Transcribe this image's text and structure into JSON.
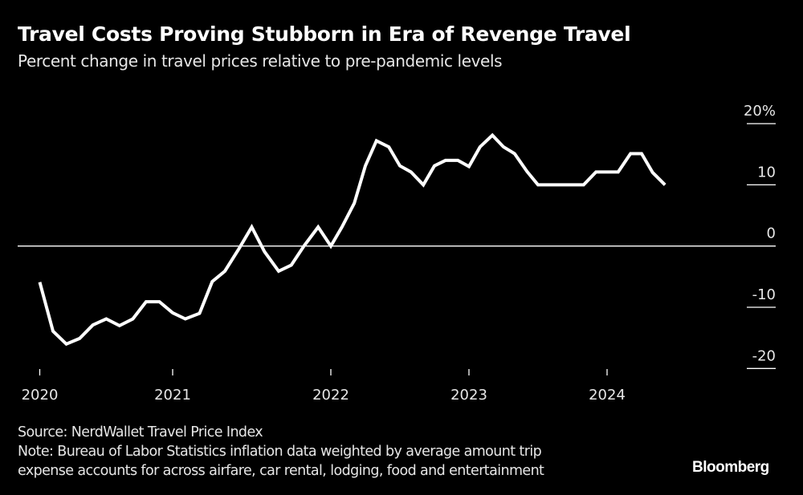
{
  "title": "Travel Costs Proving Stubborn in Era of Revenge Travel",
  "subtitle": "Percent change in travel prices relative to pre-pandemic levels",
  "footer": {
    "source": "Source: NerdWallet Travel Price Index",
    "note_line1": "Note: Bureau of Labor Statistics inflation data weighted by average amount trip",
    "note_line2": "expense accounts for across airfare, car rental, lodging, food and entertainment",
    "logo": "Bloomberg"
  },
  "chart_data": {
    "type": "line",
    "title": "Travel Costs Proving Stubborn in Era of Revenge Travel",
    "subtitle": "Percent change in travel prices relative to pre-pandemic levels",
    "ylim": [
      -20,
      20
    ],
    "y_ticks": [
      {
        "value": 20,
        "label": "20%"
      },
      {
        "value": 10,
        "label": "10"
      },
      {
        "value": 0,
        "label": "0"
      },
      {
        "value": -10,
        "label": "-10"
      },
      {
        "value": -20,
        "label": "-20"
      }
    ],
    "x_ticks": [
      {
        "value": 2020,
        "label": "2020"
      },
      {
        "value": 2021,
        "label": "2021"
      },
      {
        "value": 2022,
        "label": "2022"
      },
      {
        "value": 2023,
        "label": "2023"
      },
      {
        "value": 2024,
        "label": "2024"
      }
    ],
    "grid": false,
    "zero_line": true,
    "line_color": "#ffffff",
    "background": "#000000",
    "series": [
      {
        "x": [
          2020.0,
          2020.1,
          2020.2,
          2020.3,
          2020.4,
          2020.5,
          2020.6,
          2020.7,
          2020.8,
          2020.9,
          2021.0,
          2021.08,
          2021.17,
          2021.25,
          2021.33,
          2021.42,
          2021.5,
          2021.58,
          2021.67,
          2021.75,
          2021.83,
          2021.92,
          2022.0,
          2022.08,
          2022.17,
          2022.25,
          2022.33,
          2022.42,
          2022.5,
          2022.58,
          2022.67,
          2022.75,
          2022.83,
          2022.92,
          2023.0,
          2023.08,
          2023.17,
          2023.25,
          2023.33,
          2023.42,
          2023.5,
          2023.58,
          2023.67,
          2023.75,
          2023.83,
          2023.92,
          2024.0,
          2024.08,
          2024.17,
          2024.25,
          2024.33,
          2024.42
        ],
        "values": [
          -5.9,
          -13.9,
          -16.0,
          -15.1,
          -12.9,
          -11.9,
          -13.0,
          -11.9,
          -9.1,
          -9.1,
          -10.9,
          -11.9,
          -11.0,
          -5.8,
          -4.1,
          -0.4,
          3.1,
          -0.9,
          -4.1,
          -3.1,
          0.0,
          3.1,
          0.0,
          3.1,
          7.0,
          13.1,
          17.2,
          16.2,
          13.1,
          12.1,
          10.0,
          13.1,
          14.0,
          14.0,
          13.0,
          16.2,
          18.1,
          16.2,
          15.1,
          12.2,
          10.0,
          10.0,
          10.0,
          10.0,
          10.0,
          12.1,
          12.1,
          12.1,
          15.1,
          15.1,
          12.0,
          10.0
        ]
      }
    ]
  }
}
